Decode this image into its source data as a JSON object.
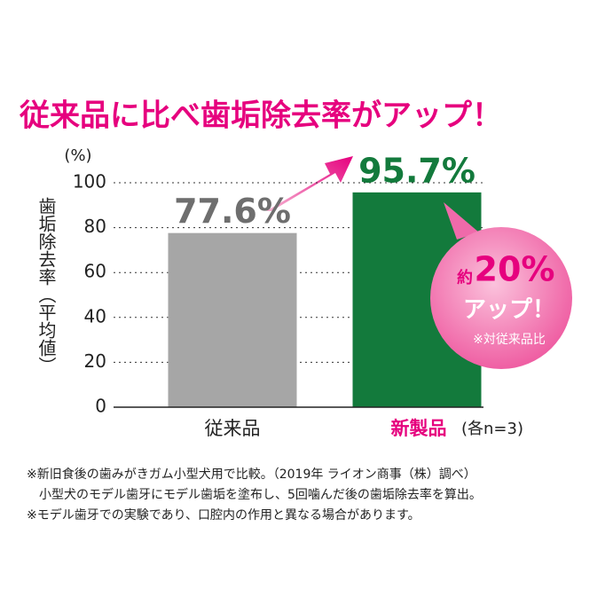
{
  "chart_data": {
    "type": "bar",
    "title": "従来品に比べ歯垢除去率がアップ！",
    "unit_label": "(%)",
    "ylabel": "歯垢除去率（平均値）",
    "categories": [
      "従来品",
      "新製品"
    ],
    "category_note": "(各n=3)",
    "values": [
      77.6,
      95.7
    ],
    "value_labels": [
      "77.6%",
      "95.7%"
    ],
    "colors": [
      "#a6a6a6",
      "#137a3c"
    ],
    "ylim": [
      0,
      100
    ],
    "yticks": [
      0,
      20,
      40,
      60,
      80,
      100
    ],
    "grid": true,
    "callout": {
      "prefix": "約",
      "figure": "20%",
      "text": "アップ！",
      "note": "※対従来品比"
    },
    "footnotes": [
      "※新旧食後の歯みがきガム小型犬用で比較。（2019年 ライオン商事（株）調べ）",
      "小型犬のモデル歯牙にモデル歯垢を塗布し、5回噛んだ後の歯垢除去率を算出。",
      "※モデル歯牙での実験であり、口腔内の作用と異なる場合があります。"
    ]
  }
}
